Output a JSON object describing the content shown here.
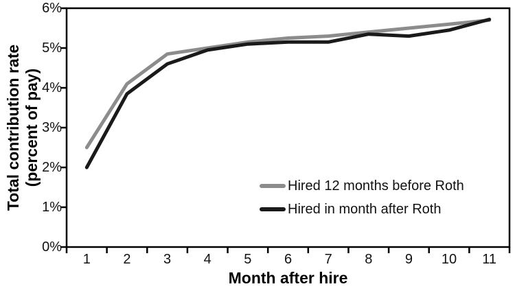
{
  "chart_data": {
    "type": "line",
    "x": [
      1,
      2,
      3,
      4,
      5,
      6,
      7,
      8,
      9,
      10,
      11
    ],
    "x_tick_labels": [
      "1",
      "2",
      "3",
      "4",
      "5",
      "6",
      "7",
      "8",
      "9",
      "10",
      "11"
    ],
    "y_ticks": [
      0,
      1,
      2,
      3,
      4,
      5,
      6
    ],
    "y_tick_labels": [
      "0%",
      "1%",
      "2%",
      "3%",
      "4%",
      "5%",
      "6%"
    ],
    "xlabel": "Month after hire",
    "ylabel": "Total contribution rate (percent of pay)",
    "ylabel_lines": [
      "Total contribution rate",
      "(percent of pay)"
    ],
    "xlim": [
      0.5,
      11.5
    ],
    "ylim": [
      0,
      6
    ],
    "grid": false,
    "legend_position": "inside-lower-right",
    "frame_color": "#000000",
    "series": [
      {
        "name": "Hired 12 months before Roth",
        "color": "#8c8c8c",
        "values": [
          2.5,
          4.1,
          4.85,
          5.0,
          5.15,
          5.25,
          5.3,
          5.4,
          5.5,
          5.6,
          5.7
        ]
      },
      {
        "name": "Hired in month after Roth",
        "color": "#1a1a1a",
        "values": [
          2.0,
          3.85,
          4.6,
          4.95,
          5.1,
          5.15,
          5.15,
          5.35,
          5.3,
          5.45,
          5.72
        ]
      }
    ]
  }
}
